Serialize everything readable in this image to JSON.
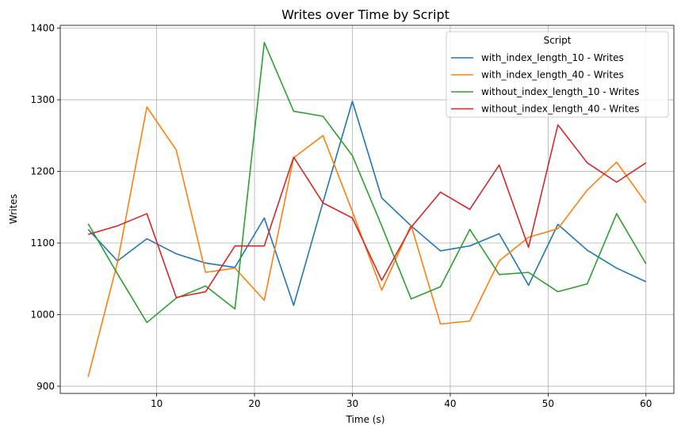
{
  "chart_data": {
    "type": "line",
    "title": "Writes over Time by Script",
    "xlabel": "Time (s)",
    "ylabel": "Writes",
    "xlim": [
      0.15,
      62.85
    ],
    "ylim": [
      890,
      1404
    ],
    "xticks": [
      10,
      20,
      30,
      40,
      50,
      60
    ],
    "yticks": [
      900,
      1000,
      1100,
      1200,
      1300,
      1400
    ],
    "grid": true,
    "legend": {
      "title": "Script",
      "placement": "top-right"
    },
    "x": [
      3,
      6,
      9,
      12,
      15,
      18,
      21,
      24,
      27,
      30,
      33,
      36,
      39,
      42,
      45,
      48,
      51,
      54,
      57,
      60
    ],
    "series": [
      {
        "name": "with_index_length_10 - Writes",
        "color": "#1f77b4",
        "values": [
          1119,
          1075,
          1106,
          1085,
          1072,
          1066,
          1135,
          1013,
          1157,
          1298,
          1163,
          1124,
          1089,
          1096,
          1113,
          1041,
          1126,
          1090,
          1065,
          1046
        ]
      },
      {
        "name": "with_index_length_40 - Writes",
        "color": "#ff7f0e",
        "values": [
          913,
          1073,
          1290,
          1230,
          1059,
          1065,
          1020,
          1219,
          1250,
          1144,
          1034,
          1125,
          987,
          991,
          1075,
          1108,
          1120,
          1174,
          1213,
          1156
        ]
      },
      {
        "name": "without_index_length_10 - Writes",
        "color": "#2ca02c",
        "values": [
          1127,
          1057,
          989,
          1023,
          1040,
          1008,
          1380,
          1284,
          1277,
          1222,
          1124,
          1022,
          1039,
          1119,
          1056,
          1059,
          1032,
          1043,
          1141,
          1071
        ]
      },
      {
        "name": "without_index_length_40 - Writes",
        "color": "#d62728",
        "values": [
          1112,
          1124,
          1141,
          1024,
          1032,
          1096,
          1096,
          1220,
          1156,
          1135,
          1048,
          1122,
          1171,
          1147,
          1209,
          1094,
          1265,
          1212,
          1185,
          1212
        ]
      }
    ]
  }
}
